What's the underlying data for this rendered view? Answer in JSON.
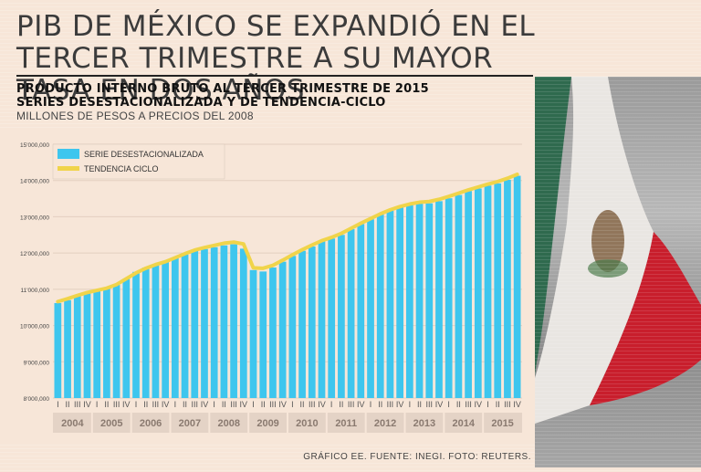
{
  "headline": "PIB DE MÉXICO SE EXPANDIÓ EN EL TERCER TRIMESTRE A SU MAYOR TASA EN DOS AÑOS",
  "subtitle_line1": "PRODUCTO INTERNO BRUTO AL TERCER TRIMESTRE DE 2015",
  "subtitle_line2": "SERIES DESESTACIONALIZADA Y DE TENDENCIA-CICLO",
  "subtitle_line3": "MILLONES DE PESOS A PRECIOS DEL 2008",
  "footer": "GRÁFICO EE. FUENTE: INEGI. FOTO: REUTERS.",
  "colors": {
    "bar": "#3ec6ee",
    "trend": "#f0d44a",
    "background": "#f7e6d8"
  },
  "chart_data": {
    "type": "bar",
    "title": "PRODUCTO INTERNO BRUTO AL TERCER TRIMESTRE DE 2015",
    "ylabel": "MILLONES DE PESOS A PRECIOS DEL 2008",
    "xlabel": "",
    "ylim": [
      8000000,
      15000000
    ],
    "yticks": [
      8000000,
      9000000,
      10000000,
      11000000,
      12000000,
      13000000,
      14000000,
      15000000
    ],
    "ytick_labels": [
      "8'000,000",
      "9'000,000",
      "10'000,000",
      "11'000,000",
      "12'000,000",
      "13'000,000",
      "14'000,000",
      "15'000,000"
    ],
    "quarter_labels": [
      "I",
      "II",
      "III",
      "IV"
    ],
    "years": [
      "2004",
      "2005",
      "2006",
      "2007",
      "2008",
      "2009",
      "2010",
      "2011",
      "2012",
      "2013",
      "2014",
      "2015"
    ],
    "series": [
      {
        "name": "SERIE DESESTACIONALIZADA",
        "type": "bar",
        "values": [
          10620000,
          10700000,
          10810000,
          10890000,
          10950000,
          11020000,
          11120000,
          11290000,
          11480000,
          11600000,
          11680000,
          11750000,
          11860000,
          11960000,
          12060000,
          12110000,
          12160000,
          12210000,
          12240000,
          12120000,
          11530000,
          11490000,
          11600000,
          11760000,
          11920000,
          12060000,
          12180000,
          12320000,
          12400000,
          12500000,
          12660000,
          12800000,
          12930000,
          13060000,
          13170000,
          13250000,
          13330000,
          13360000,
          13370000,
          13430000,
          13510000,
          13600000,
          13710000,
          13780000,
          13860000,
          13920000,
          14020000,
          14130000
        ]
      },
      {
        "name": "TENDENCIA CICLO",
        "type": "line",
        "values": [
          10660000,
          10740000,
          10830000,
          10910000,
          10970000,
          11030000,
          11130000,
          11290000,
          11450000,
          11580000,
          11680000,
          11760000,
          11870000,
          11980000,
          12080000,
          12150000,
          12210000,
          12270000,
          12300000,
          12250000,
          11590000,
          11580000,
          11660000,
          11800000,
          11950000,
          12090000,
          12220000,
          12340000,
          12430000,
          12540000,
          12680000,
          12820000,
          12950000,
          13080000,
          13190000,
          13280000,
          13350000,
          13400000,
          13420000,
          13480000,
          13560000,
          13650000,
          13740000,
          13820000,
          13900000,
          13970000,
          14060000,
          14170000
        ]
      }
    ],
    "legend": {
      "position": "top-left"
    }
  }
}
